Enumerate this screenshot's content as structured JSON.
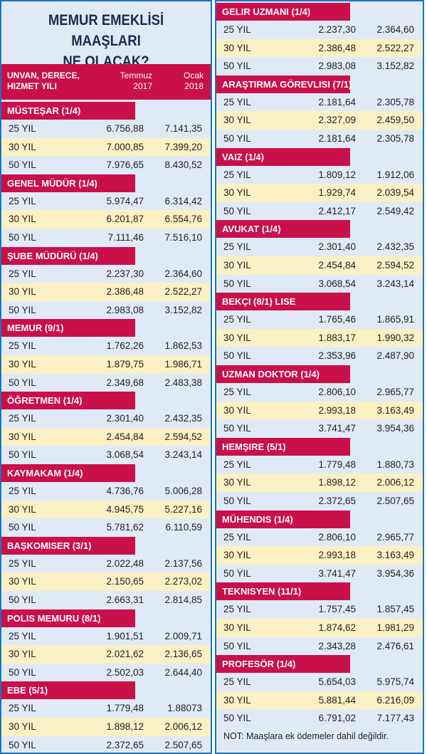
{
  "title": [
    "MEMUR EMEKLİSİ MAAŞLARI",
    "NE OLACAK?"
  ],
  "header": {
    "label": [
      "UNVAN, DERECE,",
      "HIZMET YILI"
    ],
    "columns": [
      [
        "Temmuz",
        "2017"
      ],
      [
        "Ocak",
        "2018"
      ]
    ]
  },
  "left": [
    {
      "name": "MÜSTEŞAR (1/4)",
      "rows": [
        [
          "25 YIL",
          "6.756,88",
          "7.141,35"
        ],
        [
          "30 YIL",
          "7.000,85",
          "7.399,20"
        ],
        [
          "50 YIL",
          "7.976,65",
          "8.430,52"
        ]
      ]
    },
    {
      "name": "GENEL MÜDÜR (1/4)",
      "rows": [
        [
          "25 YIL",
          "5.974,47",
          "6.314,42"
        ],
        [
          "30 YIL",
          "6.201,87",
          "6.554,76"
        ],
        [
          "50 YIL",
          "7.111,46",
          "7.516,10"
        ]
      ]
    },
    {
      "name": "ŞUBE MÜDÜRÜ (1/4)",
      "rows": [
        [
          "25 YIL",
          "2.237,30",
          "2.364,60"
        ],
        [
          "30 YIL",
          "2.386,48",
          "2.522,27"
        ],
        [
          "50 YIL",
          "2.983,08",
          "3.152,82"
        ]
      ]
    },
    {
      "name": "MEMUR (9/1)",
      "rows": [
        [
          "25 YIL",
          "1.762,26",
          "1.862,53"
        ],
        [
          "30 YIL",
          "1.879,75",
          "1.986,71"
        ],
        [
          "50 YIL",
          "2.349,68",
          "2.483,38"
        ]
      ]
    },
    {
      "name": "ÖĞRETMEN (1/4)",
      "rows": [
        [
          "25 YIL",
          "2.301,40",
          "2.432,35"
        ],
        [
          "30 YIL",
          "2.454,84",
          "2.594,52"
        ],
        [
          "50 YIL",
          "3.068,54",
          "3.243,14"
        ]
      ]
    },
    {
      "name": "KAYMAKAM (1/4)",
      "rows": [
        [
          "25 YIL",
          "4.736,76",
          "5.006,28"
        ],
        [
          "30 YIL",
          "4.945,75",
          "5.227,16"
        ],
        [
          "50 YIL",
          "5.781,62",
          "6.110,59"
        ]
      ]
    },
    {
      "name": "BAŞKOMISER (3/1)",
      "rows": [
        [
          "25 YIL",
          "2.022,48",
          "2.137,56"
        ],
        [
          "30 YIL",
          "2.150,65",
          "2.273,02"
        ],
        [
          "50 YIL",
          "2.663,31",
          "2.814,85"
        ]
      ]
    },
    {
      "name": "POLIS MEMURU (8/1)",
      "rows": [
        [
          "25 YIL",
          "1.901,51",
          "2.009,71"
        ],
        [
          "30 YIL",
          "2.021,62",
          "2.136,65"
        ],
        [
          "50 YIL",
          "2.502,03",
          "2.644,40"
        ]
      ]
    },
    {
      "name": "EBE (5/1)",
      "rows": [
        [
          "25 YIL",
          "1.779,48",
          "1.88073"
        ],
        [
          "30 YIL",
          "1.898,12",
          "2.006,12"
        ],
        [
          "50 YIL",
          "2.372,65",
          "2.507,65"
        ]
      ]
    }
  ],
  "right": [
    {
      "name": "GELIR UZMANI (1/4)",
      "rows": [
        [
          "25 YIL",
          "2.237,30",
          "2.364,60"
        ],
        [
          "30 YIL",
          "2.386,48",
          "2.522,27"
        ],
        [
          "50 YIL",
          "2.983,08",
          "3.152,82"
        ]
      ]
    },
    {
      "name": "ARAŞTIRMA GÖREVLISI (7/1)",
      "rows": [
        [
          "25 YIL",
          "2.181,64",
          "2.305,78"
        ],
        [
          "30 YIL",
          "2.327,09",
          "2.459,50"
        ],
        [
          "50 YIL",
          "2.181,64",
          "2.305,78"
        ]
      ]
    },
    {
      "name": "VAIZ (1/4)",
      "rows": [
        [
          "25 YIL",
          "1.809,12",
          "1.912,06"
        ],
        [
          "30 YIL",
          "1.929,74",
          "2.039,54"
        ],
        [
          "50 YIL",
          "2.412,17",
          "2.549,42"
        ]
      ]
    },
    {
      "name": "AVUKAT (1/4)",
      "rows": [
        [
          "25 YIL",
          "2.301,40",
          "2.432,35"
        ],
        [
          "30 YIL",
          "2.454,84",
          "2.594,52"
        ],
        [
          "50 YIL",
          "3.068,54",
          "3.243,14"
        ]
      ]
    },
    {
      "name": "BEKÇI (8/1) LISE",
      "rows": [
        [
          "25 YIL",
          "1.765,46",
          "1.865,91"
        ],
        [
          "30 YIL",
          "1.883,17",
          "1.990,32"
        ],
        [
          "50 YIL",
          "2.353,96",
          "2.487,90"
        ]
      ]
    },
    {
      "name": "UZMAN DOKTOR (1/4)",
      "rows": [
        [
          "25 YIL",
          "2.806,10",
          "2.965,77"
        ],
        [
          "30 YIL",
          "2.993,18",
          "3.163,49"
        ],
        [
          "50 YIL",
          "3.741,47",
          "3.954,36"
        ]
      ]
    },
    {
      "name": "HEMŞIRE (5/1)",
      "rows": [
        [
          "25 YIL",
          "1.779,48",
          "1.880,73"
        ],
        [
          "30 YIL",
          "1.898,12",
          "2.006,12"
        ],
        [
          "50 YIL",
          "2.372,65",
          "2.507,65"
        ]
      ]
    },
    {
      "name": "MÜHENDIS (1/4)",
      "rows": [
        [
          "25 YIL",
          "2.806,10",
          "2.965,77"
        ],
        [
          "30 YIL",
          "2.993,18",
          "3.163,49"
        ],
        [
          "50 YIL",
          "3.741,47",
          "3.954,36"
        ]
      ]
    },
    {
      "name": "TEKNISYEN (11/1)",
      "rows": [
        [
          "25 YIL",
          "1.757,45",
          "1.857,45"
        ],
        [
          "30 YIL",
          "1.874,62",
          "1.981,29"
        ],
        [
          "50 YIL",
          "2.343,28",
          "2.476,61"
        ]
      ]
    },
    {
      "name": "PROFESÖR (1/4)",
      "rows": [
        [
          "25 YIL",
          "5.654,03",
          "5.975,74"
        ],
        [
          "30 YIL",
          "5.881,44",
          "6.216,09"
        ],
        [
          "50 YIL",
          "6.791,02",
          "7.177,43"
        ]
      ]
    }
  ],
  "note": "NOT: Maaşlara ek ödemeler dahil değildir."
}
